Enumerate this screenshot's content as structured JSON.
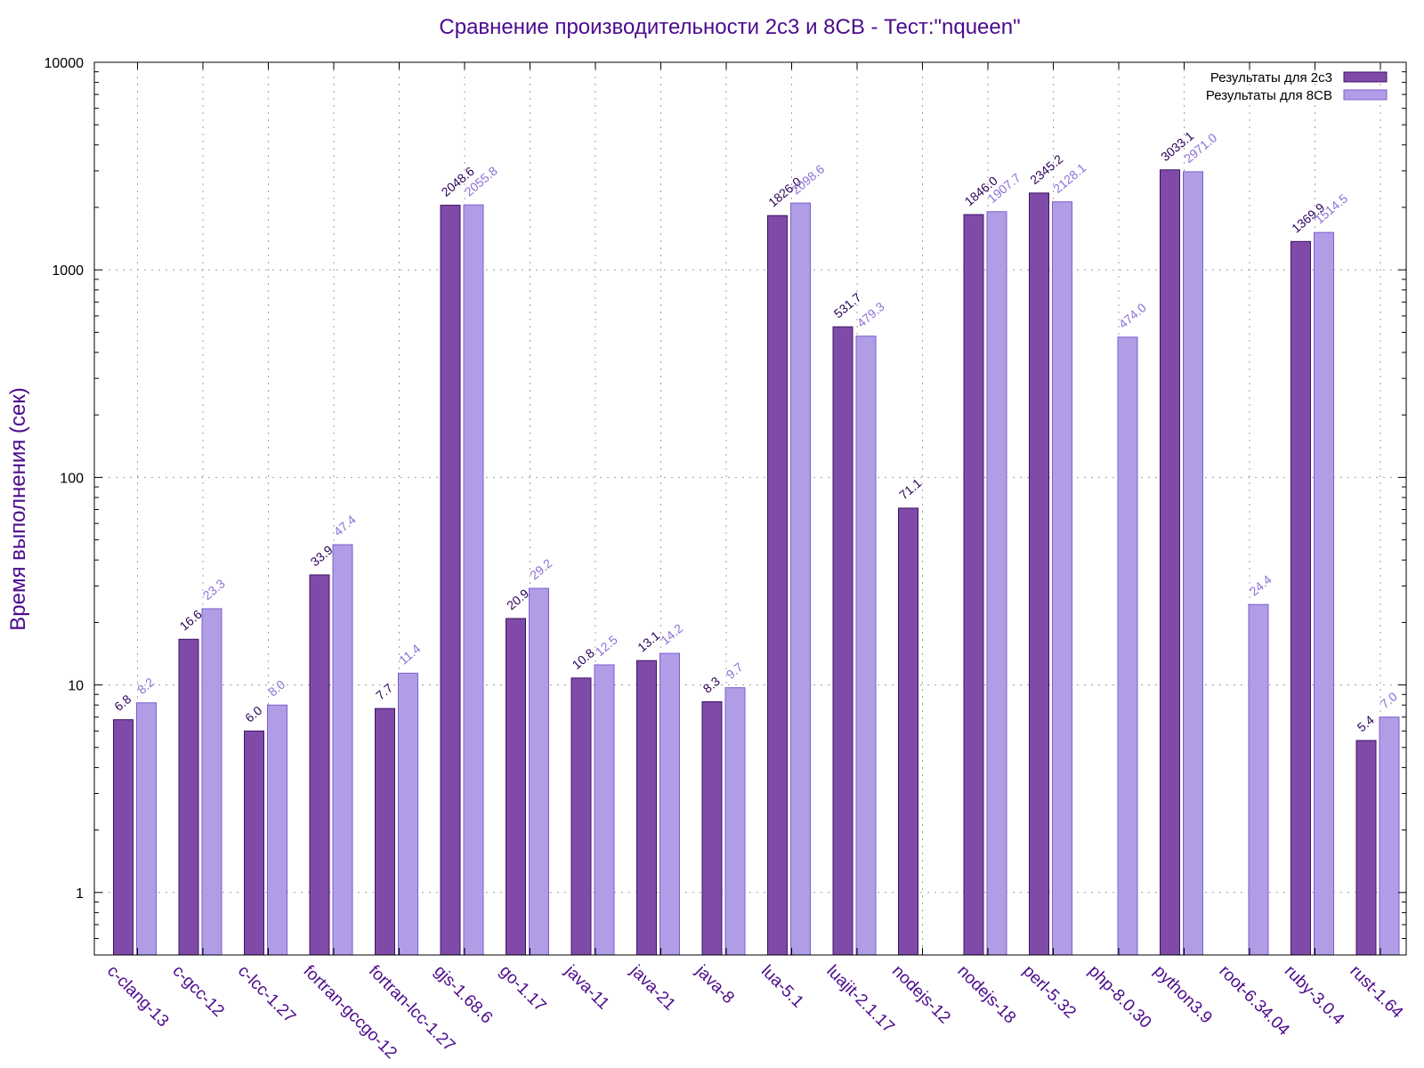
{
  "chart_data": {
    "type": "bar",
    "title": "Сравнение производительности 2с3 и 8СВ - Тест:\"nqueen\"",
    "xlabel": "",
    "ylabel": "Время выполнения (сек)",
    "yscale": "log",
    "ylim": [
      0.5,
      10000
    ],
    "yticks": [
      "1",
      "10",
      "100",
      "1000",
      "10000"
    ],
    "grid": true,
    "legend_position": "top-right",
    "categories": [
      "c-clang-13",
      "c-gcc-12",
      "c-lcc-1.27",
      "fortran-gccgo-12",
      "fortran-lcc-1.27",
      "gjs-1.68.6",
      "go-1.17",
      "java-11",
      "java-21",
      "java-8",
      "lua-5.1",
      "luajit-2.1.17",
      "nodejs-12",
      "nodejs-18",
      "perl-5.32",
      "php-8.0.30",
      "python3.9",
      "root-6.34.04",
      "ruby-3.0.4",
      "rust-1.64"
    ],
    "series": [
      {
        "name": "Результаты для 2с3",
        "color": "#7f4aa8",
        "stroke": "#3d1466",
        "labels": [
          "6.8",
          "16.6",
          "6.0",
          "33.9",
          "7.7",
          "2048.6",
          "20.9",
          "10.8",
          "13.1",
          "8.3",
          "1826.0",
          "531.7",
          "71.1",
          "1846.0",
          "2345.2",
          null,
          "3033.1",
          null,
          "1369.9",
          "5.4"
        ],
        "values": [
          6.8,
          16.6,
          6.0,
          33.9,
          7.7,
          2048.6,
          20.9,
          10.8,
          13.1,
          8.3,
          1826.0,
          531.7,
          71.1,
          1846.0,
          2345.2,
          null,
          3033.1,
          null,
          1369.9,
          5.4
        ]
      },
      {
        "name": "Результаты для 8СВ",
        "color": "#b09de6",
        "stroke": "#7b5fcf",
        "labels": [
          "8.2",
          "23.3",
          "8.0",
          "47.4",
          "11.4",
          "2055.8",
          "29.2",
          "12.5",
          "14.2",
          "9.7",
          "2098.6",
          "479.3",
          null,
          "1907.7",
          "2128.1",
          "474.0",
          "2971.0",
          "24.4",
          "1514.5",
          "7.0"
        ],
        "values": [
          8.2,
          23.3,
          8.0,
          47.4,
          11.4,
          2055.8,
          29.2,
          12.5,
          14.2,
          9.7,
          2098.6,
          479.3,
          null,
          1907.7,
          2128.1,
          474.0,
          2971.0,
          24.4,
          1514.5,
          7.0
        ]
      }
    ]
  }
}
